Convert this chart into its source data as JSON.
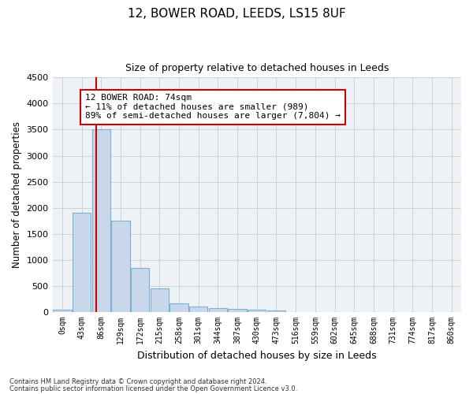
{
  "title": "12, BOWER ROAD, LEEDS, LS15 8UF",
  "subtitle": "Size of property relative to detached houses in Leeds",
  "xlabel": "Distribution of detached houses by size in Leeds",
  "ylabel": "Number of detached properties",
  "bar_color": "#c8d8ea",
  "bar_edge_color": "#7bafd4",
  "grid_color": "#cccccc",
  "bg_color": "#eef2f7",
  "categories": [
    "0sqm",
    "43sqm",
    "86sqm",
    "129sqm",
    "172sqm",
    "215sqm",
    "258sqm",
    "301sqm",
    "344sqm",
    "387sqm",
    "430sqm",
    "473sqm",
    "516sqm",
    "559sqm",
    "602sqm",
    "645sqm",
    "688sqm",
    "731sqm",
    "774sqm",
    "817sqm",
    "860sqm"
  ],
  "values": [
    50,
    1900,
    3500,
    1760,
    840,
    460,
    165,
    100,
    70,
    55,
    40,
    35,
    0,
    0,
    0,
    0,
    0,
    0,
    0,
    0,
    0
  ],
  "ylim": [
    0,
    4500
  ],
  "yticks": [
    0,
    500,
    1000,
    1500,
    2000,
    2500,
    3000,
    3500,
    4000,
    4500
  ],
  "property_line_x": 1.75,
  "property_line_color": "#cc0000",
  "annotation_text": "12 BOWER ROAD: 74sqm\n← 11% of detached houses are smaller (989)\n89% of semi-detached houses are larger (7,804) →",
  "annotation_box_color": "#cc0000",
  "footer_line1": "Contains HM Land Registry data © Crown copyright and database right 2024.",
  "footer_line2": "Contains public sector information licensed under the Open Government Licence v3.0."
}
